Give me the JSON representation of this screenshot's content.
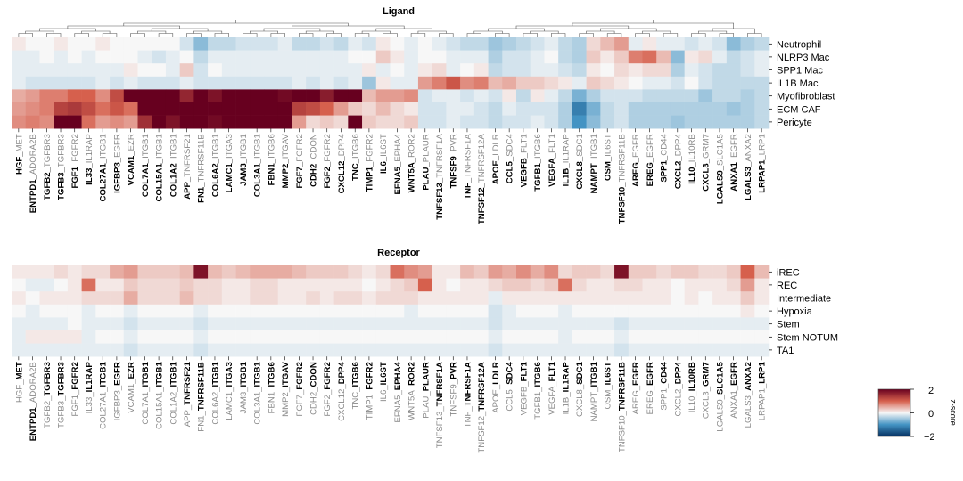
{
  "chart_data": [
    {
      "type": "heatmap",
      "title": "Ligand",
      "rows": [
        "Neutrophil",
        "NLRP3 Mac",
        "SPP1 Mac",
        "IL1B Mac",
        "Myofibroblast",
        "ECM CAF",
        "Pericyte"
      ],
      "columns": [
        {
          "ligand": "HGF",
          "receptor": "MET"
        },
        {
          "ligand": "ENTPD1",
          "receptor": "ADORA2B"
        },
        {
          "ligand": "TGFB2",
          "receptor": "TGFBR3"
        },
        {
          "ligand": "TGFB3",
          "receptor": "TGFBR3"
        },
        {
          "ligand": "FGF1",
          "receptor": "FGFR2"
        },
        {
          "ligand": "IL33",
          "receptor": "IL1RAP"
        },
        {
          "ligand": "COL27A1",
          "receptor": "ITGB1"
        },
        {
          "ligand": "IGFBP3",
          "receptor": "EGFR"
        },
        {
          "ligand": "VCAM1",
          "receptor": "EZR"
        },
        {
          "ligand": "COL7A1",
          "receptor": "ITGB1"
        },
        {
          "ligand": "COL15A1",
          "receptor": "ITGB1"
        },
        {
          "ligand": "COL1A2",
          "receptor": "ITGB1"
        },
        {
          "ligand": "APP",
          "receptor": "TNFRSF21"
        },
        {
          "ligand": "FN1",
          "receptor": "TNFRSF11B"
        },
        {
          "ligand": "COL6A2",
          "receptor": "ITGB1"
        },
        {
          "ligand": "LAMC1",
          "receptor": "ITGA3"
        },
        {
          "ligand": "JAM3",
          "receptor": "ITGB1"
        },
        {
          "ligand": "COL3A1",
          "receptor": "ITGB1"
        },
        {
          "ligand": "FBN1",
          "receptor": "ITGB6"
        },
        {
          "ligand": "MMP2",
          "receptor": "ITGAV"
        },
        {
          "ligand": "FGF7",
          "receptor": "FGFR2"
        },
        {
          "ligand": "CDH2",
          "receptor": "CDON"
        },
        {
          "ligand": "FGF2",
          "receptor": "FGFR2"
        },
        {
          "ligand": "CXCL12",
          "receptor": "DPP4"
        },
        {
          "ligand": "TNC",
          "receptor": "ITGB6"
        },
        {
          "ligand": "TIMP1",
          "receptor": "FGFR2"
        },
        {
          "ligand": "IL6",
          "receptor": "IL6ST"
        },
        {
          "ligand": "EFNA5",
          "receptor": "EPHA4"
        },
        {
          "ligand": "WNT5A",
          "receptor": "ROR2"
        },
        {
          "ligand": "PLAU",
          "receptor": "PLAUR"
        },
        {
          "ligand": "TNFSF13",
          "receptor": "TNFRSF1A"
        },
        {
          "ligand": "TNFSF9",
          "receptor": "PVR"
        },
        {
          "ligand": "TNF",
          "receptor": "TNFRSF1A"
        },
        {
          "ligand": "TNFSF12",
          "receptor": "TNFRSF12A"
        },
        {
          "ligand": "APOE",
          "receptor": "LDLR"
        },
        {
          "ligand": "CCL5",
          "receptor": "SDC4"
        },
        {
          "ligand": "VEGFB",
          "receptor": "FLT1"
        },
        {
          "ligand": "TGFB1",
          "receptor": "ITGB6"
        },
        {
          "ligand": "VEGFA",
          "receptor": "FLT1"
        },
        {
          "ligand": "IL1B",
          "receptor": "IL1RAP"
        },
        {
          "ligand": "CXCL8",
          "receptor": "SDC1"
        },
        {
          "ligand": "NAMPT",
          "receptor": "ITGB1"
        },
        {
          "ligand": "OSM",
          "receptor": "IL6ST"
        },
        {
          "ligand": "TNFSF10",
          "receptor": "TNFRSF11B"
        },
        {
          "ligand": "AREG",
          "receptor": "EGFR"
        },
        {
          "ligand": "EREG",
          "receptor": "EGFR"
        },
        {
          "ligand": "SPP1",
          "receptor": "CD44"
        },
        {
          "ligand": "CXCL2",
          "receptor": "DPP4"
        },
        {
          "ligand": "IL10",
          "receptor": "IL10RB"
        },
        {
          "ligand": "CXCL3",
          "receptor": "GRM7"
        },
        {
          "ligand": "LGALS9",
          "receptor": "SLC1A5"
        },
        {
          "ligand": "ANXA1",
          "receptor": "EGFR"
        },
        {
          "ligand": "LGALS3",
          "receptor": "ANXA2"
        },
        {
          "ligand": "LRPAP1",
          "receptor": "LRP1"
        }
      ],
      "bold_part": [
        "ligand",
        "ligand",
        "ligand",
        "ligand",
        "ligand",
        "ligand",
        "ligand",
        "ligand",
        "ligand",
        "ligand",
        "ligand",
        "ligand",
        "ligand",
        "ligand",
        "ligand",
        "ligand",
        "ligand",
        "ligand",
        "ligand",
        "ligand",
        "ligand",
        "ligand",
        "ligand",
        "ligand",
        "ligand",
        "ligand",
        "ligand",
        "ligand",
        "ligand",
        "ligand",
        "ligand",
        "ligand",
        "ligand",
        "ligand",
        "ligand",
        "ligand",
        "ligand",
        "ligand",
        "ligand",
        "ligand",
        "ligand",
        "ligand",
        "ligand",
        "ligand",
        "ligand",
        "ligand",
        "ligand",
        "ligand",
        "ligand",
        "ligand",
        "ligand",
        "ligand",
        "ligand",
        "ligand"
      ],
      "values": [
        [
          0.1,
          0.0,
          0.0,
          0.1,
          0.0,
          0.0,
          0.1,
          0.0,
          0.0,
          0.0,
          0.0,
          0.0,
          -0.2,
          -0.6,
          -0.3,
          -0.3,
          -0.2,
          -0.2,
          -0.2,
          -0.1,
          -0.3,
          -0.3,
          -0.2,
          -0.3,
          -0.1,
          -0.2,
          0.1,
          0.0,
          -0.1,
          0.0,
          -0.1,
          -0.2,
          -0.3,
          -0.3,
          -0.5,
          -0.4,
          -0.3,
          -0.2,
          -0.1,
          -0.3,
          -0.4,
          0.2,
          0.4,
          0.6,
          -0.1,
          0.1,
          -0.1,
          -0.1,
          -0.2,
          -0.1,
          -0.2,
          -0.6,
          -0.4,
          -0.3
        ],
        [
          -0.1,
          -0.1,
          0.0,
          -0.1,
          0.0,
          -0.1,
          0.0,
          0.0,
          0.0,
          -0.1,
          -0.2,
          -0.1,
          0.0,
          -0.3,
          -0.1,
          -0.1,
          -0.1,
          -0.1,
          -0.1,
          -0.1,
          -0.1,
          -0.1,
          -0.1,
          -0.1,
          0.0,
          0.0,
          0.3,
          0.1,
          -0.1,
          0.0,
          0.0,
          -0.1,
          -0.1,
          -0.1,
          -0.4,
          -0.2,
          -0.2,
          -0.1,
          0.0,
          -0.3,
          -0.4,
          0.3,
          0.1,
          0.3,
          0.8,
          0.9,
          0.4,
          -0.6,
          0.1,
          0.2,
          -0.1,
          -0.3,
          -0.2,
          -0.1
        ],
        [
          -0.1,
          -0.1,
          -0.1,
          -0.1,
          -0.1,
          -0.1,
          -0.1,
          -0.1,
          0.1,
          0.0,
          0.0,
          -0.1,
          0.3,
          -0.2,
          0.0,
          -0.1,
          -0.1,
          -0.1,
          -0.1,
          -0.1,
          -0.1,
          -0.1,
          -0.1,
          -0.1,
          -0.1,
          0.1,
          -0.1,
          0.0,
          -0.1,
          0.1,
          0.2,
          -0.1,
          0.0,
          0.1,
          -0.3,
          -0.2,
          -0.2,
          -0.1,
          -0.1,
          -0.2,
          -0.3,
          0.1,
          0.0,
          0.2,
          0.1,
          0.2,
          0.2,
          -0.4,
          -0.1,
          -0.2,
          -0.3,
          -0.3,
          -0.2,
          -0.1
        ],
        [
          -0.1,
          -0.2,
          -0.2,
          -0.2,
          -0.2,
          -0.2,
          -0.1,
          -0.2,
          -0.1,
          -0.2,
          -0.2,
          -0.2,
          -0.1,
          -0.2,
          -0.2,
          -0.2,
          -0.2,
          -0.2,
          -0.2,
          -0.2,
          -0.1,
          -0.2,
          -0.1,
          -0.2,
          -0.1,
          -0.5,
          0.1,
          -0.1,
          -0.1,
          0.6,
          0.8,
          1.1,
          0.7,
          0.8,
          0.4,
          0.5,
          0.3,
          0.3,
          0.2,
          0.1,
          -0.1,
          0.3,
          0.2,
          0.1,
          0.0,
          -0.1,
          -0.1,
          -0.2,
          0.0,
          -0.2,
          -0.3,
          -0.3,
          -0.3,
          -0.3
        ],
        [
          0.5,
          0.6,
          0.8,
          0.8,
          1.0,
          1.0,
          0.7,
          1.2,
          2.4,
          2.4,
          2.2,
          2.0,
          1.6,
          2.0,
          1.8,
          2.0,
          2.0,
          2.1,
          2.1,
          1.9,
          2.1,
          2.2,
          1.7,
          2.4,
          2.5,
          0.4,
          0.6,
          0.6,
          0.7,
          -0.2,
          -0.1,
          -0.1,
          -0.2,
          -0.1,
          -0.2,
          0.1,
          -0.3,
          0.1,
          -0.1,
          -0.3,
          -0.7,
          -0.4,
          -0.2,
          -0.2,
          -0.2,
          -0.3,
          -0.3,
          -0.3,
          -0.3,
          -0.5,
          -0.3,
          -0.3,
          -0.4,
          -0.3
        ],
        [
          0.6,
          0.7,
          0.8,
          1.3,
          1.4,
          1.2,
          0.9,
          1.1,
          0.9,
          2.4,
          2.2,
          2.4,
          2.2,
          2.1,
          2.0,
          2.2,
          2.4,
          2.3,
          2.2,
          2.1,
          1.3,
          1.2,
          1.0,
          0.6,
          0.3,
          0.2,
          0.4,
          0.2,
          0.1,
          -0.2,
          -0.2,
          -0.1,
          -0.1,
          -0.2,
          -0.3,
          -0.1,
          -0.2,
          -0.2,
          -0.2,
          -0.4,
          -1.2,
          -0.7,
          -0.3,
          -0.2,
          -0.4,
          -0.4,
          -0.4,
          -0.4,
          -0.4,
          -0.4,
          -0.4,
          -0.5,
          -0.4,
          -0.3
        ],
        [
          0.7,
          0.8,
          0.7,
          2.4,
          2.5,
          0.9,
          0.6,
          0.7,
          0.6,
          1.5,
          2.4,
          1.8,
          2.2,
          2.2,
          1.9,
          2.0,
          2.3,
          2.2,
          2.3,
          2.0,
          0.6,
          0.2,
          0.3,
          0.2,
          2.0,
          0.3,
          0.2,
          0.2,
          0.3,
          -0.2,
          -0.2,
          -0.1,
          -0.2,
          -0.2,
          -0.3,
          -0.2,
          -0.2,
          -0.1,
          -0.2,
          -0.4,
          -1.0,
          -0.6,
          -0.3,
          -0.2,
          -0.4,
          -0.4,
          -0.4,
          -0.5,
          -0.4,
          -0.4,
          -0.4,
          -0.4,
          -0.4,
          -0.3
        ]
      ],
      "dendrogram": "column-clustered",
      "color_scale": {
        "min": -2,
        "max": 2,
        "label": "z-score",
        "ticks": [
          "2",
          "0",
          "−2"
        ]
      }
    },
    {
      "type": "heatmap",
      "title": "Receptor",
      "rows": [
        "iREC",
        "REC",
        "Intermediate",
        "Hypoxia",
        "Stem",
        "Stem NOTUM",
        "TA1"
      ],
      "columns": "same_as_ligand",
      "bold_part": [
        "receptor",
        "ligand",
        "receptor",
        "receptor",
        "receptor",
        "receptor",
        "receptor",
        "receptor",
        "receptor",
        "receptor",
        "receptor",
        "receptor",
        "receptor",
        "receptor",
        "receptor",
        "receptor",
        "receptor",
        "receptor",
        "receptor",
        "receptor",
        "receptor",
        "receptor",
        "receptor",
        "receptor",
        "receptor",
        "receptor",
        "receptor",
        "receptor",
        "receptor",
        "receptor",
        "receptor",
        "receptor",
        "receptor",
        "receptor",
        "receptor",
        "receptor",
        "receptor",
        "receptor",
        "receptor",
        "receptor",
        "receptor",
        "receptor",
        "receptor",
        "receptor",
        "receptor",
        "receptor",
        "receptor",
        "receptor",
        "receptor",
        "receptor",
        "receptor",
        "receptor",
        "receptor",
        "receptor"
      ],
      "values": [
        [
          0.1,
          0.1,
          0.1,
          0.2,
          0.1,
          0.2,
          0.2,
          0.5,
          0.6,
          0.3,
          0.3,
          0.3,
          0.4,
          1.8,
          0.4,
          0.3,
          0.4,
          0.5,
          0.5,
          0.5,
          0.4,
          0.3,
          0.3,
          0.3,
          0.2,
          0.1,
          0.2,
          0.9,
          0.7,
          0.6,
          0.1,
          0.1,
          0.4,
          0.3,
          0.6,
          0.5,
          0.7,
          0.5,
          0.7,
          0.2,
          0.3,
          0.3,
          0.2,
          1.8,
          0.3,
          0.3,
          0.2,
          0.3,
          0.3,
          0.2,
          0.2,
          0.3,
          1.0,
          0.4
        ],
        [
          0.0,
          -0.1,
          -0.1,
          0.0,
          0.1,
          0.9,
          0.1,
          0.1,
          0.3,
          0.2,
          0.2,
          0.2,
          0.3,
          0.2,
          0.2,
          0.1,
          0.1,
          0.2,
          0.2,
          0.1,
          0.1,
          0.1,
          0.1,
          0.1,
          0.1,
          0.0,
          0.1,
          0.2,
          0.3,
          1.0,
          0.1,
          0.0,
          0.1,
          0.1,
          0.2,
          0.3,
          0.3,
          0.2,
          0.3,
          0.9,
          0.2,
          0.1,
          0.1,
          0.2,
          0.2,
          0.1,
          0.1,
          0.0,
          0.1,
          0.1,
          0.1,
          0.2,
          0.6,
          0.1
        ],
        [
          0.1,
          0.0,
          0.1,
          0.1,
          0.1,
          0.2,
          0.2,
          0.2,
          0.5,
          0.2,
          0.2,
          0.2,
          0.4,
          0.2,
          0.2,
          0.1,
          0.1,
          0.2,
          0.2,
          0.1,
          0.1,
          0.2,
          0.1,
          0.2,
          0.2,
          0.1,
          0.2,
          0.2,
          0.2,
          0.1,
          0.1,
          0.1,
          0.1,
          0.1,
          -0.1,
          0.1,
          0.1,
          0.1,
          0.1,
          0.1,
          0.1,
          0.1,
          0.1,
          0.1,
          0.1,
          0.1,
          0.1,
          0.0,
          0.1,
          0.0,
          0.1,
          0.1,
          0.3,
          0.1
        ],
        [
          0.0,
          -0.1,
          0.0,
          0.0,
          0.0,
          -0.1,
          0.0,
          0.0,
          -0.1,
          0.0,
          0.0,
          0.0,
          0.0,
          -0.1,
          0.0,
          0.0,
          0.0,
          0.0,
          0.0,
          0.0,
          0.0,
          0.0,
          0.0,
          0.0,
          0.0,
          0.0,
          0.0,
          0.0,
          -0.1,
          0.0,
          0.0,
          0.0,
          0.0,
          0.0,
          -0.2,
          -0.1,
          0.0,
          0.0,
          0.0,
          -0.1,
          0.0,
          0.0,
          0.0,
          0.0,
          0.0,
          0.0,
          0.0,
          0.0,
          0.0,
          0.0,
          0.0,
          0.0,
          0.1,
          0.0
        ],
        [
          -0.1,
          -0.1,
          -0.1,
          -0.1,
          0.0,
          -0.1,
          -0.1,
          -0.1,
          -0.2,
          -0.1,
          -0.1,
          -0.1,
          -0.1,
          -0.2,
          -0.1,
          -0.1,
          -0.1,
          -0.1,
          -0.1,
          -0.1,
          -0.1,
          -0.1,
          -0.1,
          -0.1,
          -0.1,
          -0.1,
          -0.1,
          -0.1,
          -0.1,
          -0.1,
          -0.1,
          -0.1,
          -0.1,
          -0.1,
          -0.2,
          -0.1,
          -0.1,
          -0.1,
          -0.1,
          -0.1,
          -0.1,
          -0.1,
          -0.1,
          -0.2,
          -0.1,
          -0.1,
          -0.1,
          -0.1,
          -0.1,
          -0.1,
          -0.1,
          -0.1,
          -0.1,
          -0.1
        ],
        [
          -0.1,
          0.1,
          0.1,
          0.1,
          0.1,
          -0.1,
          0.0,
          0.0,
          -0.1,
          0.0,
          0.0,
          0.0,
          0.0,
          -0.1,
          0.0,
          0.0,
          0.0,
          0.0,
          0.0,
          0.0,
          0.0,
          0.0,
          0.0,
          0.0,
          0.0,
          0.0,
          0.0,
          0.0,
          0.0,
          0.0,
          0.0,
          0.0,
          0.0,
          0.0,
          -0.1,
          0.0,
          0.0,
          0.0,
          0.0,
          -0.1,
          0.0,
          0.0,
          0.0,
          -0.1,
          0.0,
          0.0,
          0.0,
          0.0,
          0.0,
          0.0,
          0.0,
          0.0,
          0.0,
          0.0
        ],
        [
          -0.1,
          -0.1,
          -0.1,
          -0.1,
          -0.1,
          -0.1,
          -0.1,
          -0.1,
          -0.2,
          -0.1,
          -0.1,
          -0.1,
          -0.1,
          -0.2,
          -0.1,
          -0.1,
          -0.1,
          -0.1,
          -0.1,
          -0.1,
          -0.1,
          -0.1,
          -0.1,
          -0.1,
          -0.1,
          -0.1,
          -0.1,
          -0.1,
          -0.1,
          -0.1,
          -0.1,
          -0.1,
          -0.1,
          -0.1,
          -0.2,
          -0.1,
          -0.1,
          -0.1,
          -0.1,
          -0.1,
          -0.1,
          -0.1,
          -0.1,
          -0.2,
          -0.1,
          -0.1,
          -0.1,
          -0.1,
          -0.1,
          -0.1,
          -0.1,
          -0.1,
          -0.1,
          -0.1
        ]
      ],
      "color_scale": {
        "min": -2,
        "max": 2,
        "label": "z-score"
      }
    }
  ],
  "colors": {
    "high": "#67001f",
    "mid_high": "#d6604d",
    "neutral": "#f7f7f7",
    "mid_low": "#4393c3",
    "low": "#053061",
    "label_bold": "#000000",
    "label_muted": "#888888"
  },
  "legend": {
    "max": "2",
    "zero": "0",
    "min": "−2",
    "title": "z-score"
  }
}
